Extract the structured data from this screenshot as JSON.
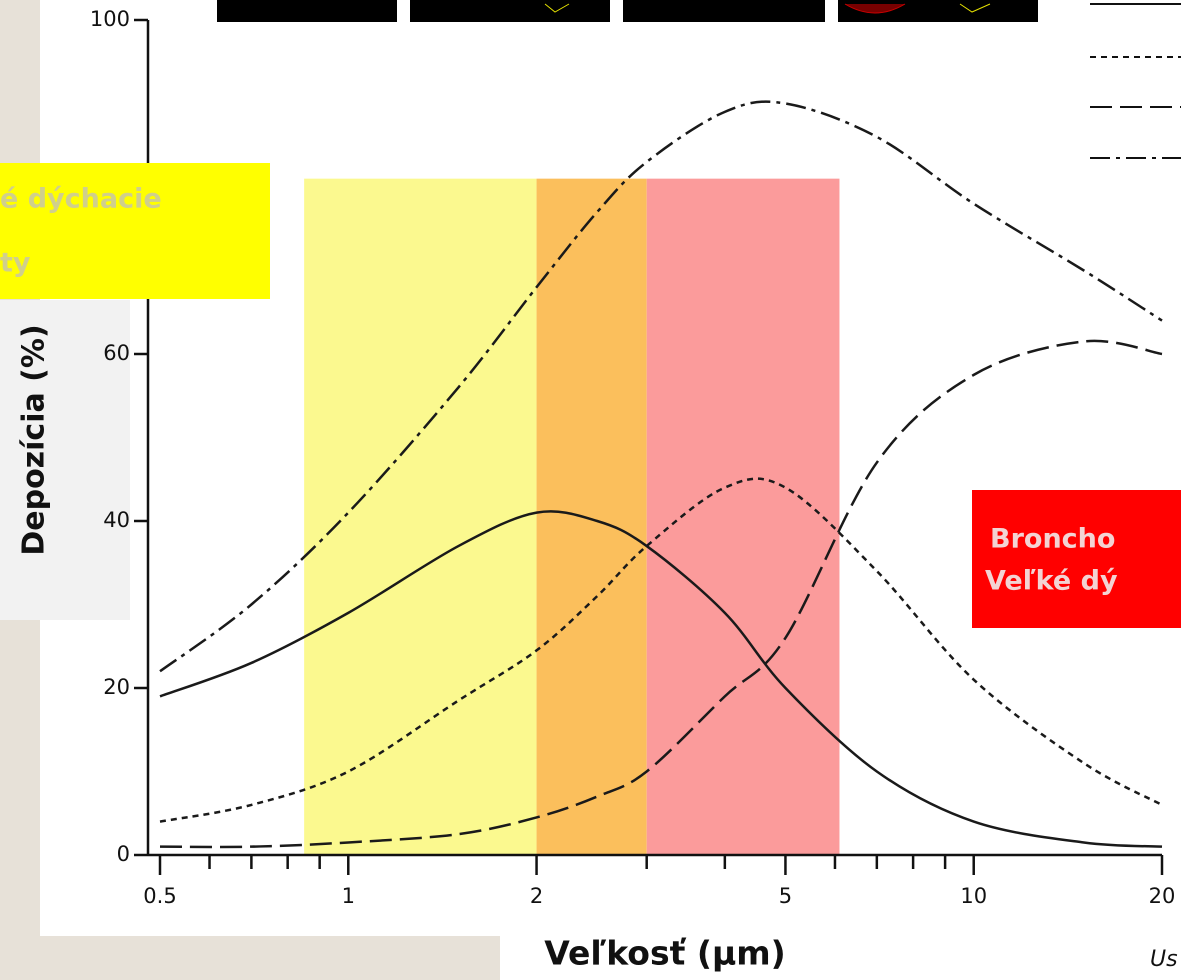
{
  "chart_data": {
    "type": "line",
    "x_label": "Veľkosť (µm)",
    "y_label": "Depozícia (%)",
    "x_scale": "log",
    "xlim": [
      0.5,
      20
    ],
    "xticks": [
      0.5,
      1,
      2,
      5,
      10,
      20
    ],
    "xminorticks": [
      0.6,
      0.7,
      0.8,
      0.9,
      3,
      4,
      6,
      7,
      8,
      9
    ],
    "ylim": [
      0,
      100
    ],
    "yticks": [
      0,
      20,
      40,
      60,
      100
    ],
    "x": [
      0.5,
      0.7,
      1,
      1.5,
      2,
      2.5,
      3,
      4,
      5,
      7,
      10,
      15,
      20
    ],
    "series": [
      {
        "color": "#1a1a1a",
        "dash": "solid",
        "values": [
          19,
          23,
          29,
          37,
          41,
          40,
          37,
          29,
          20,
          10,
          4,
          1.5,
          1
        ]
      },
      {
        "color": "#1a1a1a",
        "dash": "dotted",
        "values": [
          4,
          6,
          10,
          18.5,
          24.5,
          31,
          37,
          44,
          44,
          34,
          21,
          11,
          6
        ]
      },
      {
        "color": "#1a1a1a",
        "dash": "dashed",
        "values": [
          1,
          1,
          1.5,
          2.5,
          4.5,
          7,
          10,
          19,
          26,
          47,
          57.5,
          61.5,
          60
        ]
      },
      {
        "color": "#1a1a1a",
        "dash": "dashdot",
        "values": [
          22,
          30,
          41,
          56,
          68,
          77,
          83,
          89,
          90,
          86,
          78,
          70,
          64
        ]
      }
    ],
    "regions": [
      {
        "x0": 0.85,
        "x1": 2,
        "ytop": 81,
        "color": "#fbf98f"
      },
      {
        "x0": 2,
        "x1": 3,
        "ytop": 81,
        "color": "#fbbf5c"
      },
      {
        "x0": 3,
        "x1": 6.1,
        "ytop": 81,
        "color": "#fb9b9b"
      }
    ],
    "annotations": {
      "yellow_box": [
        "é dýchacie",
        "ty"
      ],
      "red_box": [
        "Broncho",
        "Veľké dý"
      ],
      "source": "Us"
    }
  }
}
